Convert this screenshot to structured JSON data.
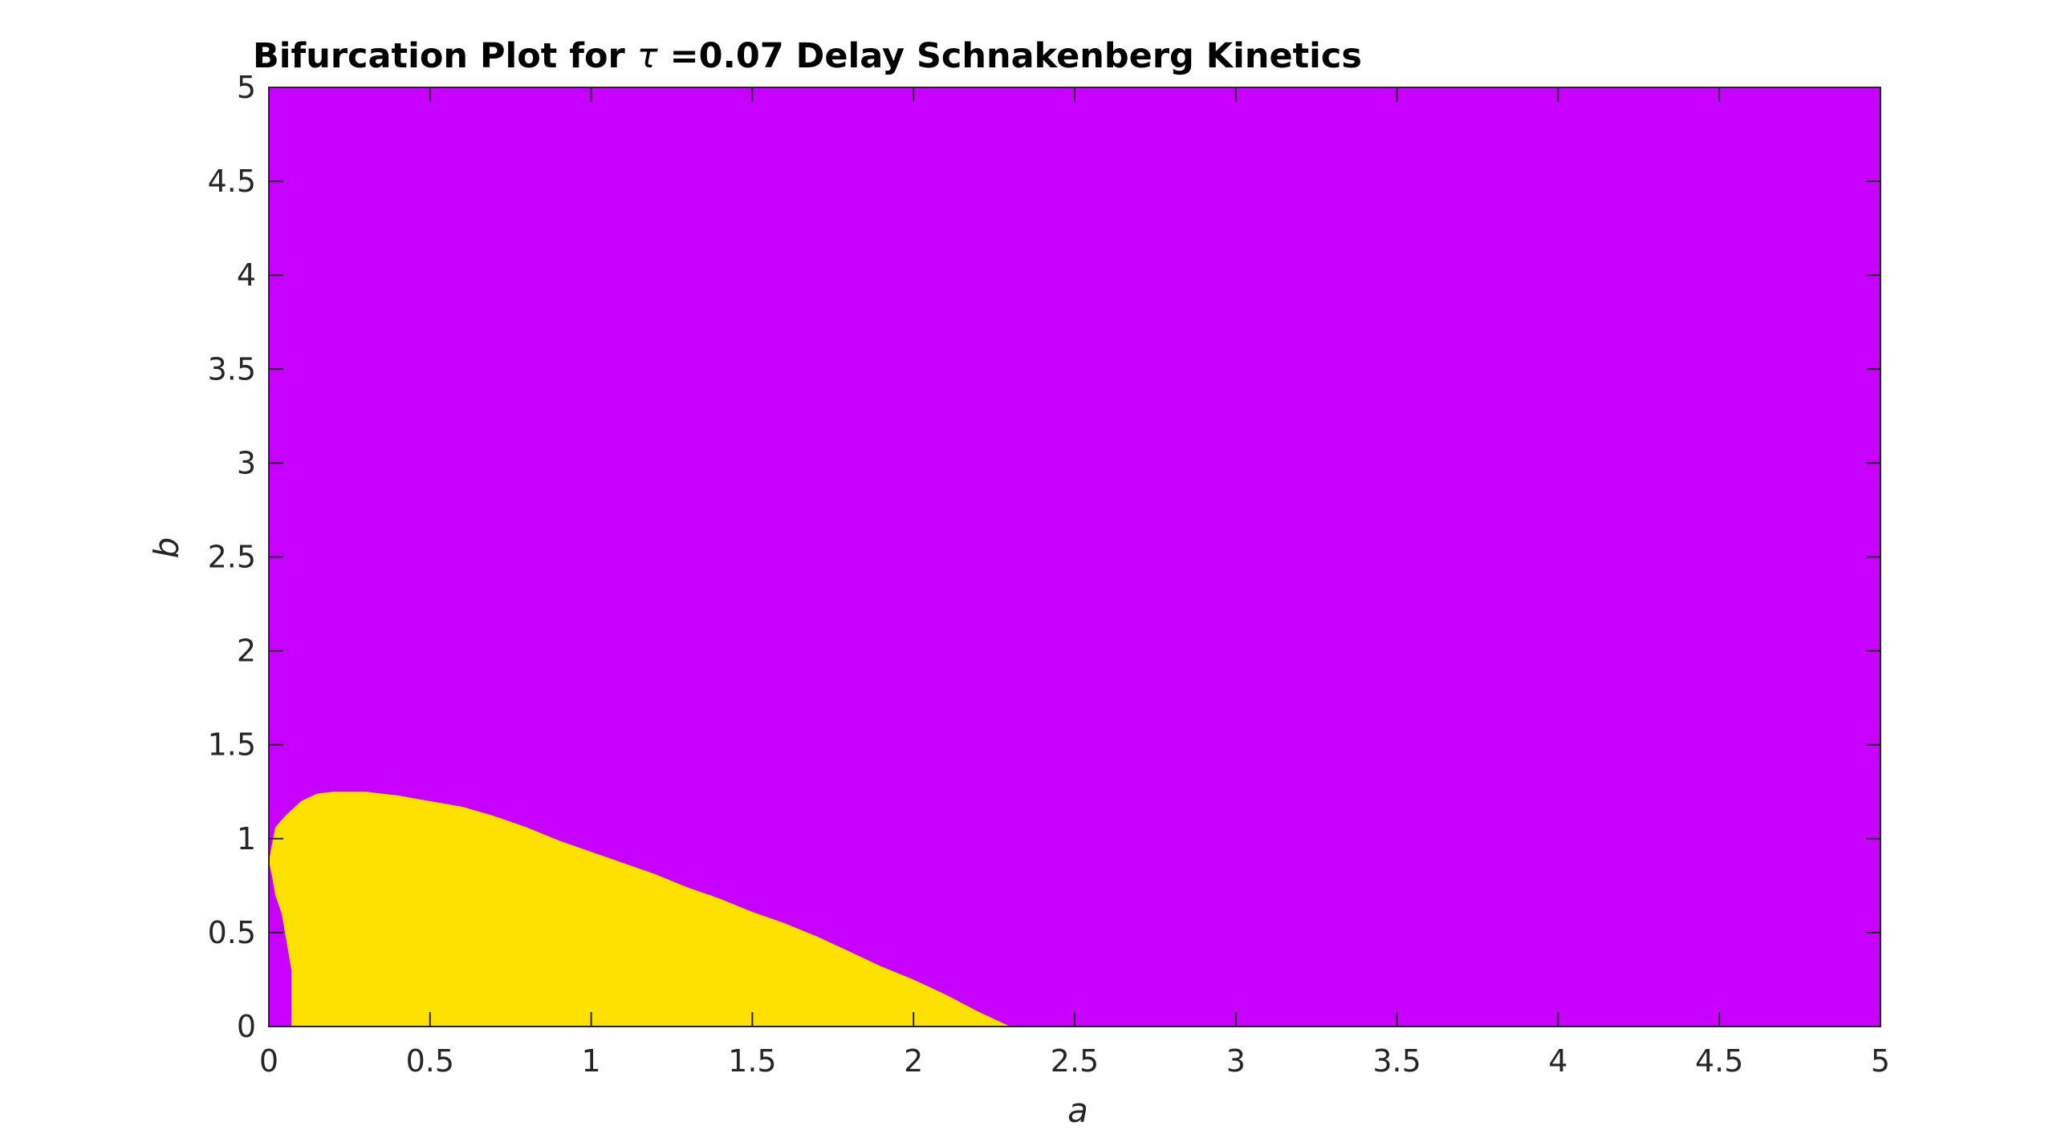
{
  "chart_data": {
    "type": "heatmap",
    "title_text": "Bifurcation Plot for ",
    "title_symbol": "τ",
    "title_rest": " =0.07 Delay Schnakenberg Kinetics",
    "xlabel": "a",
    "ylabel": "b",
    "xlim": [
      0,
      5
    ],
    "ylim": [
      0,
      5
    ],
    "x_ticks": [
      0,
      0.5,
      1,
      1.5,
      2,
      2.5,
      3,
      3.5,
      4,
      4.5,
      5
    ],
    "y_ticks": [
      0,
      0.5,
      1,
      1.5,
      2,
      2.5,
      3,
      3.5,
      4,
      4.5,
      5
    ],
    "x_tick_labels": [
      "0",
      "0.5",
      "1",
      "1.5",
      "2",
      "2.5",
      "3",
      "3.5",
      "4",
      "4.5",
      "5"
    ],
    "y_tick_labels": [
      "0",
      "0.5",
      "1",
      "1.5",
      "2",
      "2.5",
      "3",
      "3.5",
      "4",
      "4.5",
      "5"
    ],
    "grid": false,
    "colors": {
      "background_region": "#C800FF",
      "highlight_region": "#FFE100",
      "axes": "#262626"
    },
    "regions": [
      {
        "color_key": "highlight_region",
        "boundary": [
          [
            0.0,
            0.88
          ],
          [
            0.02,
            1.06
          ],
          [
            0.05,
            1.12
          ],
          [
            0.1,
            1.2
          ],
          [
            0.15,
            1.24
          ],
          [
            0.2,
            1.25
          ],
          [
            0.3,
            1.25
          ],
          [
            0.4,
            1.23
          ],
          [
            0.5,
            1.2
          ],
          [
            0.6,
            1.17
          ],
          [
            0.7,
            1.12
          ],
          [
            0.8,
            1.06
          ],
          [
            0.9,
            0.99
          ],
          [
            1.0,
            0.93
          ],
          [
            1.1,
            0.87
          ],
          [
            1.2,
            0.81
          ],
          [
            1.3,
            0.74
          ],
          [
            1.4,
            0.68
          ],
          [
            1.5,
            0.61
          ],
          [
            1.6,
            0.55
          ],
          [
            1.7,
            0.48
          ],
          [
            1.8,
            0.4
          ],
          [
            1.9,
            0.32
          ],
          [
            2.0,
            0.25
          ],
          [
            2.1,
            0.17
          ],
          [
            2.2,
            0.08
          ],
          [
            2.3,
            0.0
          ],
          [
            0.07,
            0.0
          ],
          [
            0.07,
            0.08
          ],
          [
            0.07,
            0.2
          ],
          [
            0.07,
            0.3
          ],
          [
            0.06,
            0.4
          ],
          [
            0.05,
            0.5
          ],
          [
            0.04,
            0.6
          ],
          [
            0.02,
            0.7
          ],
          [
            0.01,
            0.8
          ],
          [
            0.0,
            0.88
          ]
        ]
      }
    ]
  }
}
